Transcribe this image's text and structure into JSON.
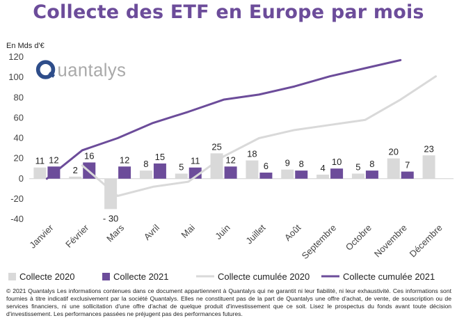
{
  "chart_data": {
    "type": "bar",
    "title": "Collecte des ETF en Europe par mois",
    "ylabel": "En Mds d'€",
    "ylim": [
      -40,
      120
    ],
    "yticks": [
      -40,
      -20,
      0,
      20,
      40,
      60,
      80,
      100,
      120
    ],
    "grid": false,
    "legend_position": "bottom",
    "categories": [
      "Janvier",
      "Février",
      "Mars",
      "Avril",
      "Mai",
      "Juin",
      "Juillet",
      "Août",
      "Septembre",
      "Octobre",
      "Novembre",
      "Décembre"
    ],
    "series": [
      {
        "name": "Collecte 2020",
        "kind": "bar",
        "color": "#d9d9d9",
        "values": [
          11,
          2,
          -30,
          8,
          5,
          25,
          18,
          9,
          4,
          5,
          20,
          23
        ],
        "labels": [
          "11",
          "2",
          "- 30",
          "8",
          "5",
          "25",
          "18",
          "9",
          "4",
          "5",
          "20",
          "23"
        ]
      },
      {
        "name": "Collecte 2021",
        "kind": "bar",
        "color": "#6c4c9a",
        "values": [
          12,
          16,
          12,
          15,
          11,
          12,
          6,
          8,
          10,
          8,
          7,
          null
        ],
        "labels": [
          "12",
          "16",
          "12",
          "15",
          "11",
          "12",
          "6",
          "8",
          "10",
          "8",
          "7",
          ""
        ]
      },
      {
        "name": "Collecte cumulée 2020",
        "kind": "line",
        "color": "#d9d9d9",
        "values": [
          null,
          13,
          -17,
          -8,
          -3,
          22,
          40,
          48,
          53,
          58,
          78,
          101
        ]
      },
      {
        "name": "Collecte cumulée 2021",
        "kind": "line",
        "color": "#6c4c9a",
        "values": [
          0,
          28,
          40,
          55,
          66,
          78,
          83,
          91,
          101,
          109,
          117,
          null
        ]
      }
    ]
  },
  "branding": {
    "logo": "Quantalys",
    "logo_color": "#5b7fc0"
  },
  "disclaimer": "© 2021 Quantalys Les informations contenues dans ce document appartiennent à Quantalys qui ne garantit ni leur fiabilité, ni leur exhaustivité. Ces informations sont fournies à titre indicatif exclusivement par la société Quantalys. Elles ne constituent pas de la part de Quantalys une offre d'achat, de vente, de souscription ou de services financiers, ni une sollicitation d'une offre d'achat de quelque produit d'investissement que ce soit. Lisez le prospectus du fonds avant toute décision d'investissement. Les performances passées ne préjugent pas des performances futures."
}
